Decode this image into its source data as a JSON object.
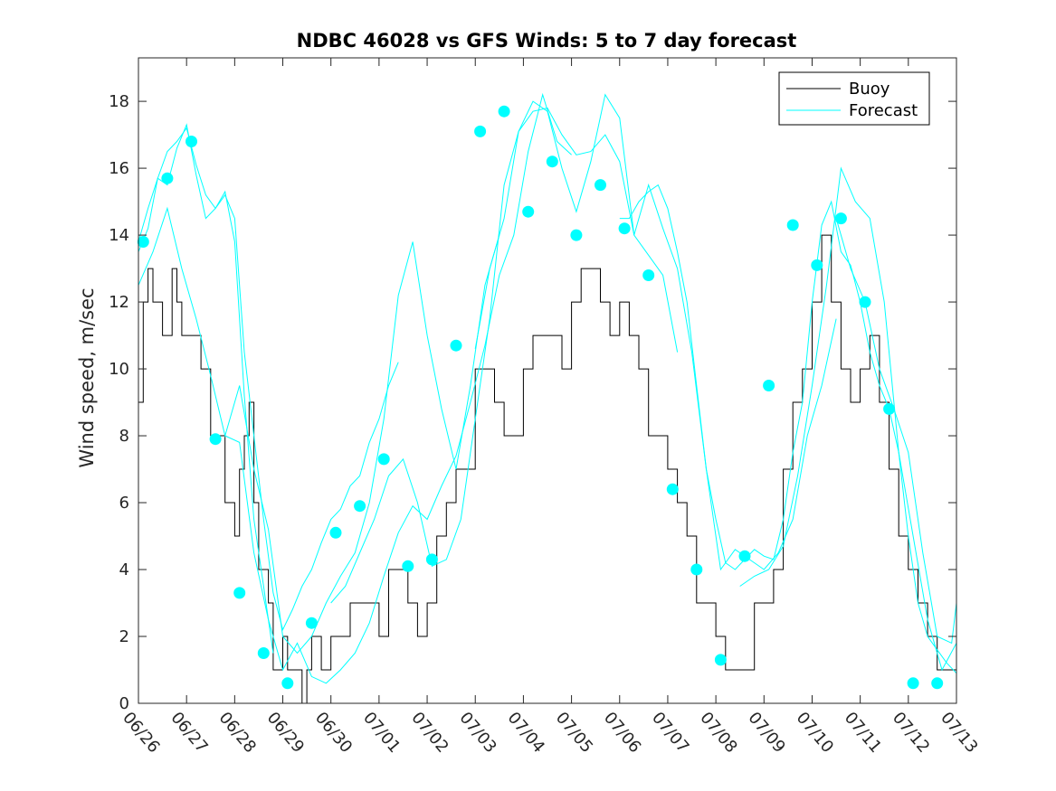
{
  "chart_data": {
    "type": "line",
    "title": "NDBC 46028 vs GFS Winds: 5 to 7 day forecast",
    "xlabel": "",
    "ylabel": "Wind speed, m/sec",
    "xlim": [
      "06/26",
      "07/13"
    ],
    "ylim": [
      0,
      19.3
    ],
    "x_tick_labels": [
      "06/26",
      "06/27",
      "06/28",
      "06/29",
      "06/30",
      "07/01",
      "07/02",
      "07/03",
      "07/04",
      "07/05",
      "07/06",
      "07/07",
      "07/08",
      "07/09",
      "07/10",
      "07/11",
      "07/12",
      "07/13"
    ],
    "y_ticks": [
      0,
      2,
      4,
      6,
      8,
      10,
      12,
      14,
      16,
      18
    ],
    "legend": {
      "position": "top-right",
      "entries": [
        "Buoy",
        "Forecast"
      ]
    },
    "colors": {
      "buoy": "#000000",
      "forecast": "#00ffff"
    },
    "series": [
      {
        "name": "Buoy",
        "x_days": [
          0.0,
          0.1,
          0.2,
          0.3,
          0.4,
          0.5,
          0.6,
          0.7,
          0.8,
          0.9,
          1.0,
          1.1,
          1.2,
          1.3,
          1.4,
          1.5,
          1.6,
          1.7,
          1.8,
          1.9,
          2.0,
          2.1,
          2.2,
          2.3,
          2.4,
          2.5,
          2.6,
          2.7,
          2.8,
          2.9,
          3.0,
          3.1,
          3.2,
          3.3,
          3.4,
          3.5,
          3.6,
          3.7,
          3.8,
          3.9,
          4.0,
          4.2,
          4.4,
          4.6,
          4.8,
          5.0,
          5.2,
          5.4,
          5.6,
          5.8,
          6.0,
          6.2,
          6.4,
          6.6,
          6.8,
          7.0,
          7.2,
          7.4,
          7.6,
          7.8,
          8.0,
          8.2,
          8.4,
          8.6,
          8.8,
          9.0,
          9.2,
          9.4,
          9.6,
          9.8,
          10.0,
          10.2,
          10.4,
          10.6,
          10.8,
          11.0,
          11.2,
          11.4,
          11.6,
          11.8,
          12.0,
          12.2,
          12.4,
          12.6,
          12.8,
          13.0,
          13.2,
          13.4,
          13.6,
          13.8,
          14.0,
          14.2,
          14.4,
          14.6,
          14.8,
          15.0,
          15.2,
          15.4,
          15.6,
          15.8,
          16.0,
          16.2,
          16.4,
          16.6,
          16.8,
          17.0
        ],
        "values": [
          9,
          12,
          13,
          12,
          12,
          11,
          11,
          13,
          12,
          11,
          11,
          11,
          11,
          10,
          10,
          8,
          8,
          8,
          6,
          6,
          5,
          7,
          8,
          9,
          6,
          4,
          4,
          3,
          1,
          1,
          2,
          1,
          1,
          1,
          0,
          1,
          2,
          2,
          1,
          1,
          2,
          2,
          3,
          3,
          3,
          2,
          4,
          4,
          3,
          2,
          3,
          5,
          6,
          7,
          7,
          10,
          10,
          9,
          8,
          8,
          10,
          11,
          11,
          11,
          10,
          12,
          13,
          13,
          12,
          11,
          12,
          11,
          10,
          8,
          8,
          7,
          6,
          5,
          3,
          3,
          2,
          1,
          1,
          1,
          3,
          3,
          4,
          7,
          9,
          10,
          12,
          14,
          12,
          10,
          9,
          10,
          11,
          9,
          7,
          5,
          4,
          3,
          2,
          1,
          1,
          1
        ]
      },
      {
        "name": "Forecast",
        "runs": [
          {
            "x_days": [
              0.0,
              0.2,
              0.4,
              0.6,
              0.8,
              1.0,
              1.2,
              1.4,
              1.6,
              1.8,
              2.0,
              2.2,
              2.4,
              2.6,
              2.8
            ],
            "values": [
              13.8,
              14.8,
              15.7,
              15.5,
              16.6,
              17.3,
              15.8,
              14.5,
              14.8,
              15.3,
              13.8,
              9.2,
              5.5,
              3.5,
              1.5
            ]
          },
          {
            "x_days": [
              0.0,
              0.2,
              0.4,
              0.6,
              0.8,
              1.0,
              1.2,
              1.4,
              1.6,
              1.8,
              2.0,
              2.2,
              2.4,
              2.6,
              2.8,
              3.0,
              3.2,
              3.4,
              3.6,
              3.8,
              4.0,
              4.2,
              4.4,
              4.6,
              4.8,
              5.0,
              5.2,
              5.4
            ],
            "values": [
              13.5,
              14.2,
              15.7,
              16.5,
              16.8,
              17.2,
              16.1,
              15.2,
              14.8,
              15.2,
              14.5,
              10.5,
              8.0,
              5.5,
              3.3,
              2.2,
              2.8,
              3.5,
              4.0,
              4.8,
              5.5,
              5.8,
              6.5,
              6.8,
              7.8,
              8.5,
              9.5,
              10.2
            ]
          },
          {
            "x_days": [
              0.0,
              0.3,
              0.6,
              0.9,
              1.2,
              1.5,
              1.8,
              2.1,
              2.4,
              2.7,
              3.0,
              3.3,
              3.6,
              3.9,
              4.2,
              4.5,
              4.8,
              5.1,
              5.4,
              5.7,
              6.0,
              6.3,
              6.6,
              6.9,
              7.2,
              7.5
            ],
            "values": [
              12.5,
              13.5,
              14.8,
              13.0,
              11.5,
              9.8,
              8.0,
              9.5,
              7.0,
              5.2,
              2.0,
              1.5,
              2.0,
              3.0,
              3.8,
              4.5,
              6.0,
              8.5,
              12.2,
              13.8,
              11.0,
              8.8,
              7.0,
              9.5,
              12.5,
              14.0
            ]
          },
          {
            "x_days": [
              1.8,
              2.1,
              2.4,
              2.7,
              3.0,
              3.3,
              3.6,
              3.9,
              4.2,
              4.5,
              4.8,
              5.1,
              5.4,
              5.7,
              6.0,
              6.3,
              6.6,
              6.9,
              7.2,
              7.5,
              7.8,
              8.1,
              8.4,
              8.7,
              9.0
            ],
            "values": [
              8.0,
              7.8,
              4.5,
              2.5,
              1.0,
              1.8,
              0.8,
              0.6,
              1.0,
              1.5,
              2.4,
              3.8,
              5.1,
              5.9,
              5.5,
              6.5,
              7.4,
              9.0,
              10.7,
              12.8,
              14.0,
              16.5,
              18.2,
              16.8,
              16.4
            ]
          },
          {
            "x_days": [
              4.0,
              4.3,
              4.6,
              4.9,
              5.2,
              5.5,
              5.8,
              6.1,
              6.4,
              6.7,
              7.0,
              7.3,
              7.6,
              7.9,
              8.2,
              8.5,
              8.8,
              9.1,
              9.4,
              9.7,
              10.0,
              10.3,
              10.6,
              10.9,
              11.2
            ],
            "values": [
              3.0,
              3.5,
              4.5,
              5.5,
              6.8,
              7.3,
              6.0,
              4.1,
              4.3,
              5.5,
              8.5,
              11.5,
              15.5,
              17.1,
              17.7,
              17.8,
              17.0,
              16.4,
              16.5,
              17.0,
              16.2,
              14.0,
              13.4,
              12.8,
              10.5
            ]
          },
          {
            "x_days": [
              7.0,
              7.3,
              7.6,
              7.9,
              8.2,
              8.5,
              8.8,
              9.1,
              9.4,
              9.7,
              10.0,
              10.3,
              10.6,
              10.9,
              11.2,
              11.5,
              11.8,
              12.1,
              12.4,
              12.7,
              13.0,
              13.3,
              13.6,
              13.9,
              14.2,
              14.5
            ],
            "values": [
              10.6,
              13.0,
              14.5,
              17.1,
              18.0,
              17.7,
              16.0,
              14.7,
              16.2,
              18.2,
              17.5,
              14.0,
              15.5,
              14.2,
              13.0,
              10.5,
              7.0,
              4.0,
              4.6,
              4.3,
              4.0,
              4.5,
              5.5,
              8.0,
              9.5,
              11.5
            ]
          },
          {
            "x_days": [
              10.0,
              10.2,
              10.4,
              10.6,
              10.8,
              11.0,
              11.2,
              11.4,
              11.6,
              11.8,
              12.0,
              12.2,
              12.4,
              12.6,
              12.8,
              13.0,
              13.2,
              13.4,
              13.6,
              13.8,
              14.0,
              14.2,
              14.4,
              14.6,
              14.8,
              15.0,
              15.2,
              15.4,
              15.6,
              15.8,
              16.0,
              16.2,
              16.4,
              16.6,
              16.8,
              17.0
            ],
            "values": [
              14.5,
              14.5,
              15.0,
              15.3,
              15.5,
              14.8,
              13.5,
              12.0,
              9.5,
              7.0,
              5.5,
              4.2,
              4.0,
              4.3,
              4.6,
              4.4,
              4.3,
              5.5,
              7.5,
              9.0,
              12.0,
              14.3,
              15.0,
              13.5,
              13.1,
              12.0,
              10.5,
              9.5,
              8.8,
              7.5,
              5.0,
              3.0,
              2.0,
              1.6,
              1.2,
              0.9
            ]
          },
          {
            "x_days": [
              12.5,
              12.8,
              13.1,
              13.4,
              13.7,
              14.0,
              14.3,
              14.6,
              14.9,
              15.2,
              15.5,
              15.8,
              16.1,
              16.4,
              16.7,
              17.0
            ],
            "values": [
              3.5,
              3.8,
              4.0,
              4.7,
              6.8,
              9.5,
              12.5,
              16.0,
              15.0,
              14.5,
              12.0,
              7.5,
              5.0,
              2.5,
              1.0,
              1.8
            ]
          },
          {
            "x_days": [
              14.5,
              14.8,
              15.1,
              15.4,
              15.7,
              16.0,
              16.3,
              16.6,
              16.9,
              17.0
            ],
            "values": [
              14.5,
              13.0,
              12.0,
              10.0,
              8.8,
              7.5,
              4.5,
              2.0,
              1.8,
              3.0
            ]
          }
        ]
      }
    ],
    "forecast_markers": {
      "x_days": [
        0.1,
        0.6,
        1.1,
        1.6,
        2.1,
        2.6,
        3.1,
        3.6,
        4.1,
        4.6,
        5.1,
        5.6,
        6.1,
        6.6,
        7.1,
        7.6,
        8.1,
        8.6,
        9.1,
        9.6,
        10.1,
        10.6,
        11.1,
        11.6,
        12.1,
        12.6,
        13.1,
        13.6,
        14.1,
        14.6,
        15.1,
        15.6,
        16.1,
        16.6
      ],
      "values": [
        13.8,
        15.7,
        16.8,
        7.9,
        3.3,
        1.5,
        0.6,
        2.4,
        5.1,
        5.9,
        7.3,
        4.1,
        4.3,
        10.7,
        17.1,
        17.7,
        14.7,
        16.2,
        14.0,
        15.5,
        14.2,
        12.8,
        6.4,
        4.0,
        1.3,
        4.4,
        9.5,
        14.3,
        13.1,
        14.5,
        12.0,
        8.8,
        0.6,
        0.6
      ]
    }
  }
}
